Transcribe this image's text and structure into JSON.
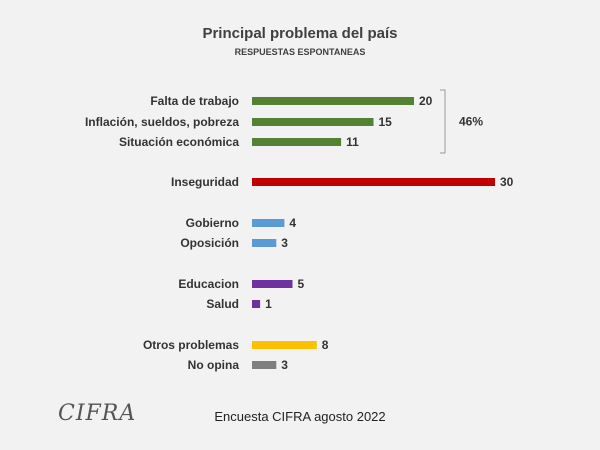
{
  "logo_text": "CIFRA",
  "footer": "Encuesta CIFRA agosto 2022",
  "chart_data": {
    "type": "bar",
    "orientation": "horizontal",
    "title": "Principal problema del país",
    "subtitle": "RESPUESTAS ESPONTANEAS",
    "categories": [
      "Falta de trabajo",
      "Inflación, sueldos, pobreza",
      "Situación económica",
      "Inseguridad",
      "Gobierno",
      "Oposición",
      "Educacion",
      "Salud",
      "Otros problemas",
      "No opina"
    ],
    "values": [
      20,
      15,
      11,
      30,
      4,
      3,
      5,
      1,
      8,
      3
    ],
    "colors": [
      "#548235",
      "#548235",
      "#548235",
      "#c00000",
      "#5b9bd5",
      "#5b9bd5",
      "#7030a0",
      "#7030a0",
      "#ffc000",
      "#7f7f7f"
    ],
    "groups": [
      [
        0,
        1,
        2
      ],
      [
        3
      ],
      [
        4,
        5
      ],
      [
        6,
        7
      ],
      [
        8,
        9
      ]
    ],
    "bracket": {
      "label": "46%",
      "covers": [
        0,
        1,
        2
      ]
    },
    "data_labels": true,
    "grid": false,
    "legend": "none"
  }
}
